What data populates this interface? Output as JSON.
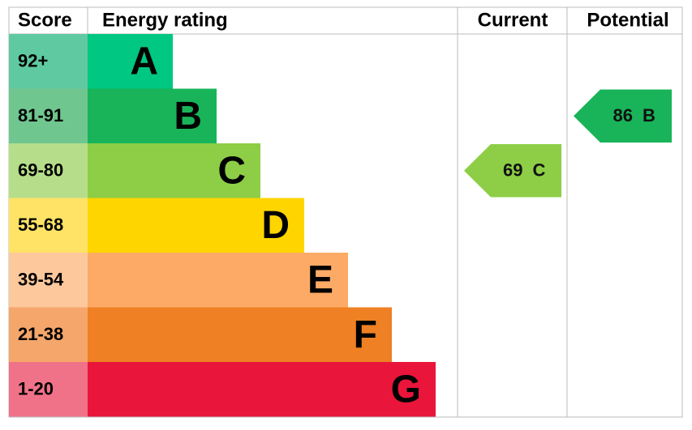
{
  "header": {
    "score": "Score",
    "rating": "Energy rating",
    "current": "Current",
    "potential": "Potential"
  },
  "bands": [
    {
      "score": "92+",
      "letter": "A",
      "color": "#00c781",
      "score_color": "#5fc9a2"
    },
    {
      "score": "81-91",
      "letter": "B",
      "color": "#19b459",
      "score_color": "#70c68f"
    },
    {
      "score": "69-80",
      "letter": "C",
      "color": "#8dce46",
      "score_color": "#b6de8a"
    },
    {
      "score": "55-68",
      "letter": "D",
      "color": "#ffd500",
      "score_color": "#ffe366"
    },
    {
      "score": "39-54",
      "letter": "E",
      "color": "#fcaa65",
      "score_color": "#fdc89c"
    },
    {
      "score": "21-38",
      "letter": "F",
      "color": "#ef8023",
      "score_color": "#f5a66a"
    },
    {
      "score": "1-20",
      "letter": "G",
      "color": "#e9153b",
      "score_color": "#f07288"
    }
  ],
  "current": {
    "value": 69,
    "letter": "C"
  },
  "potential": {
    "value": 86,
    "letter": "B"
  }
}
